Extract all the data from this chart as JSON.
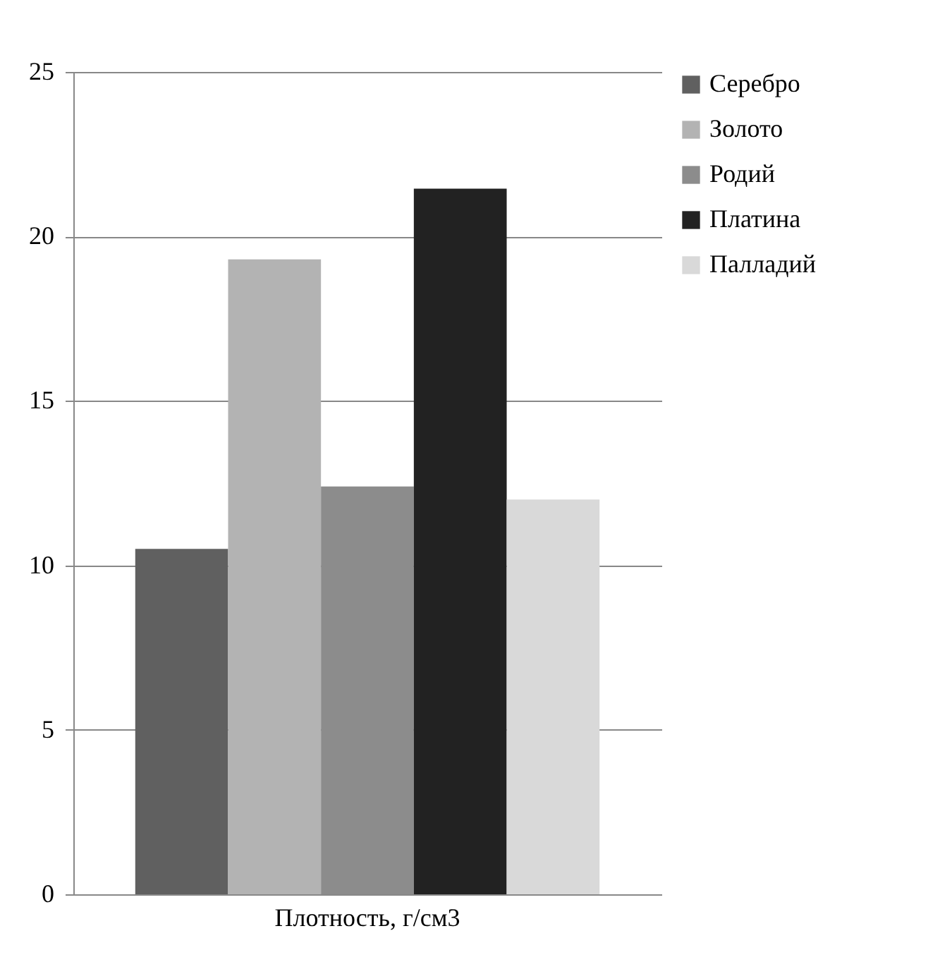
{
  "chart_data": {
    "type": "bar",
    "categories": [
      "Плотность, г/см3"
    ],
    "series": [
      {
        "name": "Серебро",
        "color": "#606060",
        "values": [
          10.5
        ]
      },
      {
        "name": "Золото",
        "color": "#b3b3b3",
        "values": [
          19.3
        ]
      },
      {
        "name": "Родий",
        "color": "#8c8c8c",
        "values": [
          12.4
        ]
      },
      {
        "name": "Платина",
        "color": "#222222",
        "values": [
          21.45
        ]
      },
      {
        "name": "Палладий",
        "color": "#d9d9d9",
        "values": [
          12
        ]
      }
    ],
    "ylim": [
      0,
      25
    ],
    "yticks": [
      0,
      5,
      10,
      15,
      20,
      25
    ],
    "grid": "y",
    "legend": "right"
  }
}
